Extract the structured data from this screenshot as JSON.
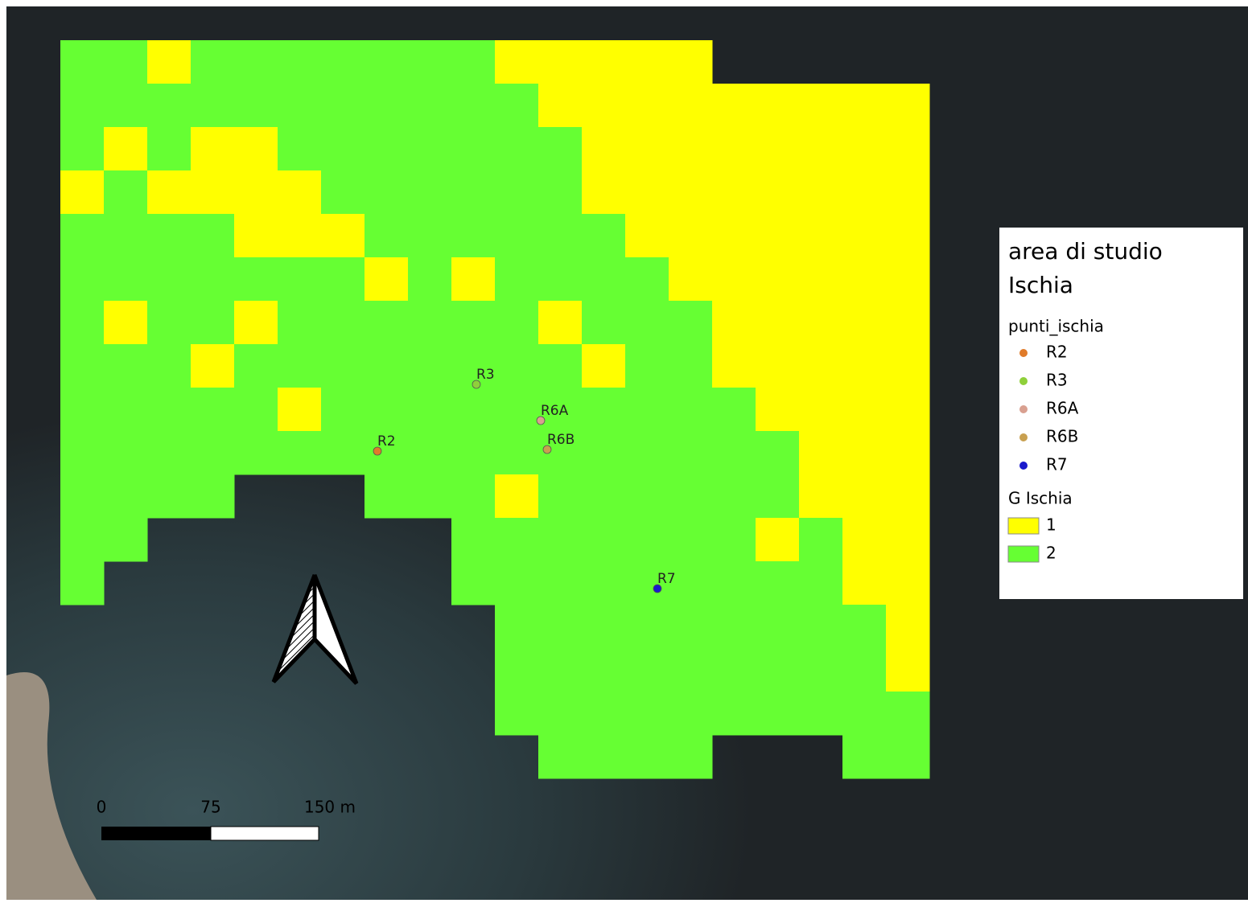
{
  "legend": {
    "title_lines": [
      "area di studio",
      "Ischia"
    ],
    "points_layer": "punti_ischia",
    "points": [
      {
        "label": "R2",
        "color": "#e07b2a"
      },
      {
        "label": "R3",
        "color": "#8fd03a"
      },
      {
        "label": "R6A",
        "color": "#d9a090"
      },
      {
        "label": "R6B",
        "color": "#c8a050"
      },
      {
        "label": "R7",
        "color": "#1a1acc"
      }
    ],
    "grid_layer": "G Ischia",
    "classes": [
      {
        "label": "1",
        "color": "#ffff00"
      },
      {
        "label": "2",
        "color": "#66ff33"
      }
    ]
  },
  "scale_bar": {
    "labels": [
      "0",
      "75",
      "150 m"
    ]
  }
}
